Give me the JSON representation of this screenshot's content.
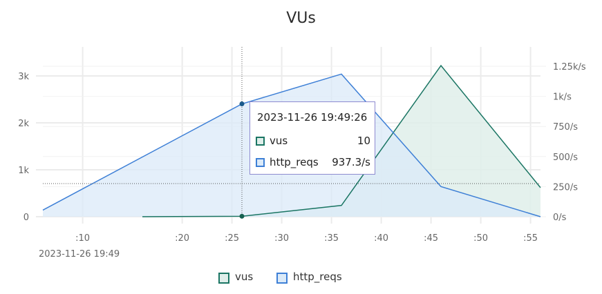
{
  "chart_data": {
    "type": "area",
    "title": "VUs",
    "x_axis": {
      "ticks": [
        ":10",
        ":20",
        ":25",
        ":30",
        ":35",
        ":40",
        ":45",
        ":50",
        ":55"
      ],
      "ticks_seconds": [
        10,
        20,
        25,
        30,
        35,
        40,
        45,
        50,
        55
      ],
      "range_seconds": [
        6,
        56
      ],
      "origin_label": "2023-11-26 19:49"
    },
    "y_left": {
      "ticks": [
        "0",
        "1k",
        "2k",
        "3k"
      ],
      "range": [
        0,
        3000
      ]
    },
    "y_right": {
      "ticks": [
        "0/s",
        "250/s",
        "500/s",
        "750/s",
        "1k/s",
        "1.25k/s"
      ],
      "range": [
        0,
        1250
      ]
    },
    "series": [
      {
        "name": "vus",
        "axis": "left",
        "color": "#1a7563",
        "fill": "#dfeeea",
        "points": [
          [
            16,
            0
          ],
          [
            26,
            10
          ],
          [
            36,
            240
          ],
          [
            46,
            3220
          ],
          [
            56,
            620
          ]
        ]
      },
      {
        "name": "http_reqs",
        "axis": "right",
        "color": "#3d7fd6",
        "fill": "#dbeaf8",
        "points": [
          [
            6,
            55
          ],
          [
            26,
            937.3
          ],
          [
            36,
            1185
          ],
          [
            46,
            250
          ],
          [
            56,
            0
          ]
        ]
      }
    ],
    "grid": true,
    "legend_position": "bottom-center",
    "crosshair": {
      "x": 26,
      "y_right": 275
    }
  },
  "tooltip": {
    "time": "2023-11-26 19:49:26",
    "rows": [
      {
        "name": "vus",
        "value": "10"
      },
      {
        "name": "http_reqs",
        "value": "937.3/s"
      }
    ]
  }
}
